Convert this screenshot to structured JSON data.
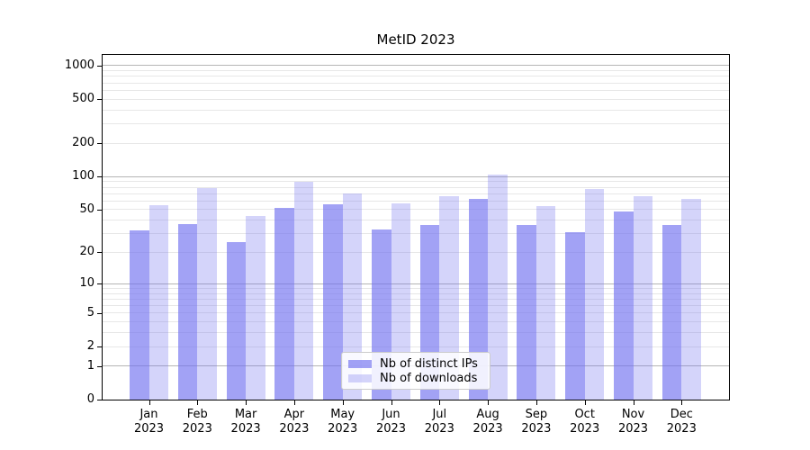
{
  "chart_data": {
    "type": "bar",
    "title": "MetID 2023",
    "categories": [
      "Jan 2023",
      "Feb 2023",
      "Mar 2023",
      "Apr 2023",
      "May 2023",
      "Jun 2023",
      "Jul 2023",
      "Aug 2023",
      "Sep 2023",
      "Oct 2023",
      "Nov 2023",
      "Dec 2023"
    ],
    "series": [
      {
        "name": "Nb of distinct IPs",
        "color": "rgba(112,112,240,0.65)",
        "values": [
          32,
          37,
          25,
          52,
          56,
          33,
          36,
          63,
          36,
          31,
          48,
          36
        ]
      },
      {
        "name": "Nb of downloads",
        "color": "rgba(112,112,240,0.30)",
        "values": [
          55,
          78,
          44,
          90,
          70,
          57,
          66,
          105,
          54,
          77,
          66,
          62
        ]
      }
    ],
    "xlabel": "",
    "ylabel": "",
    "yscale": "symlog",
    "ylim": [
      0,
      1250
    ],
    "yticks": [
      1000,
      500,
      200,
      100,
      50,
      20,
      10,
      5,
      2,
      1,
      0
    ],
    "grid": {
      "major_lines": [
        1,
        10,
        100,
        1000
      ],
      "minor_lines": [
        2,
        3,
        4,
        5,
        6,
        7,
        8,
        9,
        20,
        30,
        40,
        50,
        60,
        70,
        80,
        90,
        200,
        300,
        400,
        500,
        600,
        700,
        800,
        900
      ],
      "major_color": "#b5b5b5",
      "minor_color": "#e7e7e7"
    },
    "legend_position": "lower center inside plot"
  }
}
